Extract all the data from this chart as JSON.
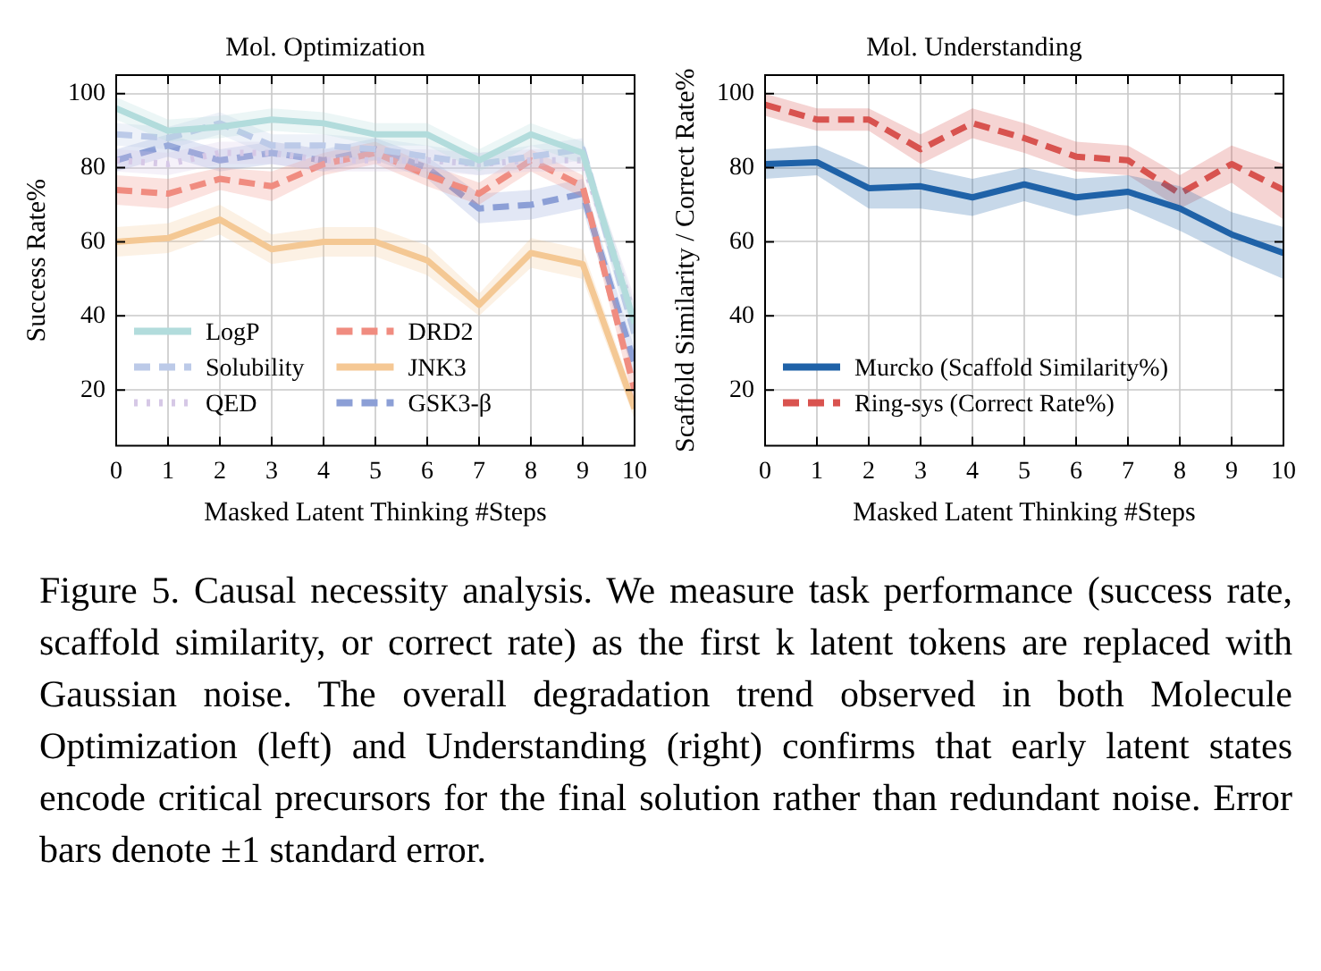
{
  "chart_data": [
    {
      "type": "line",
      "title": "Mol. Optimization",
      "xlabel": "Masked Latent Thinking #Steps",
      "ylabel": "Success Rate%",
      "x": [
        0,
        1,
        2,
        3,
        4,
        5,
        6,
        7,
        8,
        9,
        10
      ],
      "xlim": [
        0,
        10
      ],
      "xticks": [
        0,
        1,
        2,
        3,
        4,
        5,
        6,
        7,
        8,
        9,
        10
      ],
      "ylim": [
        5,
        105
      ],
      "yticks": [
        20,
        40,
        60,
        80,
        100
      ],
      "grid": true,
      "legend": "bottom left",
      "annotations": [
        "Figure 5. Causal necessity analysis. We measure task performance (success rate, scaffold similarity, or correct rate) as the first k latent tokens are replaced with Gaussian noise. The overall degradation trend observed in both Molecule Optimization (left) and Understanding (right) confirms that early latent states encode critical precursors for the final solution rather than redundant noise. Error bars denote ±1 standard error."
      ],
      "series": [
        {
          "name": "LogP",
          "color": "#b2dcdc",
          "line_style": "solid",
          "values": [
            96,
            90,
            91,
            93,
            92,
            89,
            89,
            82,
            89,
            84,
            38
          ],
          "lower": [
            93,
            87,
            88,
            90,
            89,
            86,
            86,
            79,
            86,
            81,
            33
          ],
          "upper": [
            99,
            93,
            94,
            96,
            95,
            92,
            92,
            85,
            92,
            87,
            43
          ]
        },
        {
          "name": "Solubility",
          "color": "#bccae8",
          "line_style": "dashed",
          "values": [
            89,
            88,
            92,
            86,
            86,
            85,
            83,
            81,
            83,
            85,
            35
          ],
          "lower": [
            86,
            85,
            89,
            83,
            83,
            82,
            80,
            78,
            80,
            82,
            30
          ],
          "upper": [
            92,
            91,
            95,
            89,
            89,
            88,
            86,
            84,
            86,
            88,
            40
          ]
        },
        {
          "name": "QED",
          "color": "#d6c8e6",
          "line_style": "dotted",
          "values": [
            82,
            81,
            84,
            84,
            82,
            82,
            82,
            81,
            82,
            82,
            40
          ],
          "lower": [
            79,
            78,
            81,
            81,
            79,
            79,
            79,
            78,
            79,
            79,
            35
          ],
          "upper": [
            85,
            84,
            87,
            87,
            85,
            85,
            85,
            84,
            85,
            85,
            45
          ]
        },
        {
          "name": "DRD2",
          "color": "#f08c80",
          "line_style": "dashed",
          "values": [
            74,
            73,
            77,
            75,
            81,
            84,
            78,
            73,
            82,
            75,
            20
          ],
          "lower": [
            70,
            69,
            74,
            71,
            78,
            81,
            75,
            70,
            79,
            72,
            16
          ],
          "upper": [
            78,
            77,
            80,
            79,
            84,
            87,
            81,
            76,
            85,
            78,
            24
          ]
        },
        {
          "name": "JNK3",
          "color": "#f5c894",
          "line_style": "solid",
          "values": [
            60,
            61,
            66,
            58,
            60,
            60,
            55,
            43,
            57,
            54,
            15
          ],
          "lower": [
            56,
            57,
            62,
            54,
            56,
            56,
            51,
            40,
            53,
            50,
            12
          ],
          "upper": [
            64,
            65,
            70,
            62,
            64,
            64,
            59,
            46,
            61,
            58,
            18
          ]
        },
        {
          "name": "GSK3-β",
          "color": "#8c9fd6",
          "line_style": "dashed",
          "values": [
            82,
            86,
            82,
            84,
            82,
            85,
            80,
            69,
            70,
            73,
            27
          ],
          "lower": [
            79,
            83,
            79,
            81,
            79,
            82,
            77,
            65,
            66,
            69,
            23
          ],
          "upper": [
            85,
            89,
            85,
            87,
            85,
            88,
            83,
            73,
            74,
            77,
            31
          ]
        }
      ]
    },
    {
      "type": "line",
      "title": "Mol. Understanding",
      "xlabel": "Masked Latent Thinking #Steps",
      "ylabel": "Scaffold Similarity / Correct Rate%",
      "x": [
        0,
        1,
        2,
        3,
        4,
        5,
        6,
        7,
        8,
        9,
        10
      ],
      "xlim": [
        0,
        10
      ],
      "xticks": [
        0,
        1,
        2,
        3,
        4,
        5,
        6,
        7,
        8,
        9,
        10
      ],
      "ylim": [
        5,
        105
      ],
      "yticks": [
        20,
        40,
        60,
        80,
        100
      ],
      "grid": true,
      "legend": "bottom left",
      "series": [
        {
          "name": "Murcko (Scaffold Similarity%)",
          "color": "#1f62a8",
          "line_style": "solid",
          "values": [
            81,
            81.5,
            74.5,
            75,
            72,
            75.5,
            72,
            73.5,
            69,
            62,
            57
          ],
          "lower": [
            77,
            78,
            69,
            69,
            67,
            71,
            67,
            69,
            63,
            56,
            50
          ],
          "upper": [
            85,
            86,
            80,
            80,
            77,
            80,
            77,
            78,
            75,
            68,
            64
          ]
        },
        {
          "name": "Ring-sys (Correct Rate%)",
          "color": "#d9534f",
          "line_style": "dashed",
          "values": [
            97,
            93,
            93,
            85,
            92,
            88,
            83,
            82,
            73,
            81,
            74
          ],
          "lower": [
            94,
            90,
            90,
            81,
            88,
            84,
            79,
            78,
            69,
            76,
            66
          ],
          "upper": [
            100,
            96,
            96,
            89,
            96,
            92,
            87,
            86,
            78,
            86,
            81
          ]
        }
      ]
    }
  ]
}
